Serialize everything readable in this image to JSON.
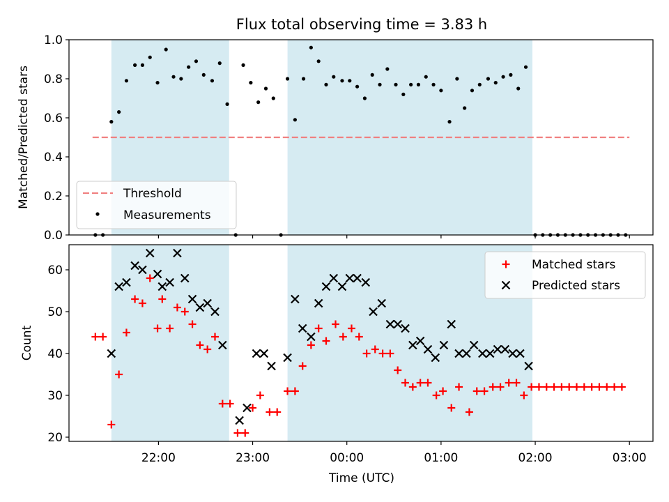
{
  "chart_data": [
    {
      "type": "scatter",
      "title": "Flux total observing time = 3.83 h",
      "ylabel": "Matched/Predicted stars",
      "xlabel": "",
      "xlim_hours": [
        21.05,
        27.25
      ],
      "ylim": [
        0.0,
        1.0
      ],
      "yticks": [
        0.0,
        0.2,
        0.4,
        0.6,
        0.8,
        1.0
      ],
      "ytick_labels": [
        "0.0",
        "0.2",
        "0.4",
        "0.6",
        "0.8",
        "1.0"
      ],
      "shaded_spans_hours": [
        [
          21.5,
          22.75
        ],
        [
          23.37,
          25.97
        ]
      ],
      "threshold": {
        "name": "Threshold",
        "value": 0.5,
        "x_range_hours": [
          21.3,
          27.0
        ],
        "color": "#f08080"
      },
      "legend": {
        "location": "lower-left",
        "entries": [
          "Threshold",
          "Measurements"
        ]
      },
      "series": [
        {
          "name": "Measurements",
          "color": "#000000",
          "points": [
            [
              21.33,
              0.0
            ],
            [
              21.41,
              0.0
            ],
            [
              21.5,
              0.58
            ],
            [
              21.58,
              0.63
            ],
            [
              21.66,
              0.79
            ],
            [
              21.75,
              0.87
            ],
            [
              21.83,
              0.87
            ],
            [
              21.91,
              0.91
            ],
            [
              21.99,
              0.78
            ],
            [
              22.08,
              0.95
            ],
            [
              22.16,
              0.81
            ],
            [
              22.24,
              0.8
            ],
            [
              22.32,
              0.86
            ],
            [
              22.4,
              0.89
            ],
            [
              22.48,
              0.82
            ],
            [
              22.57,
              0.79
            ],
            [
              22.65,
              0.88
            ],
            [
              22.73,
              0.67
            ],
            [
              22.82,
              0.0
            ],
            [
              22.9,
              0.87
            ],
            [
              22.98,
              0.78
            ],
            [
              23.06,
              0.68
            ],
            [
              23.14,
              0.75
            ],
            [
              23.22,
              0.7
            ],
            [
              23.3,
              0.0
            ],
            [
              23.37,
              0.8
            ],
            [
              23.45,
              0.59
            ],
            [
              23.54,
              0.8
            ],
            [
              23.62,
              0.96
            ],
            [
              23.7,
              0.89
            ],
            [
              23.78,
              0.77
            ],
            [
              23.86,
              0.81
            ],
            [
              23.95,
              0.79
            ],
            [
              24.03,
              0.79
            ],
            [
              24.11,
              0.76
            ],
            [
              24.19,
              0.7
            ],
            [
              24.27,
              0.82
            ],
            [
              24.35,
              0.77
            ],
            [
              24.43,
              0.85
            ],
            [
              24.52,
              0.77
            ],
            [
              24.6,
              0.72
            ],
            [
              24.68,
              0.77
            ],
            [
              24.76,
              0.77
            ],
            [
              24.84,
              0.81
            ],
            [
              24.92,
              0.77
            ],
            [
              25.0,
              0.74
            ],
            [
              25.09,
              0.58
            ],
            [
              25.17,
              0.8
            ],
            [
              25.25,
              0.65
            ],
            [
              25.33,
              0.74
            ],
            [
              25.41,
              0.77
            ],
            [
              25.5,
              0.8
            ],
            [
              25.58,
              0.78
            ],
            [
              25.66,
              0.81
            ],
            [
              25.74,
              0.82
            ],
            [
              25.82,
              0.75
            ],
            [
              25.9,
              0.86
            ],
            [
              26.0,
              0.0
            ],
            [
              26.08,
              0.0
            ],
            [
              26.16,
              0.0
            ],
            [
              26.24,
              0.0
            ],
            [
              26.32,
              0.0
            ],
            [
              26.4,
              0.0
            ],
            [
              26.48,
              0.0
            ],
            [
              26.56,
              0.0
            ],
            [
              26.64,
              0.0
            ],
            [
              26.72,
              0.0
            ],
            [
              26.8,
              0.0
            ],
            [
              26.88,
              0.0
            ],
            [
              26.96,
              0.0
            ]
          ]
        }
      ]
    },
    {
      "type": "scatter",
      "title": "",
      "ylabel": "Count",
      "xlabel": "Time (UTC)",
      "xlim_hours": [
        21.05,
        27.25
      ],
      "xticks_hours": [
        22,
        23,
        24,
        25,
        26,
        27
      ],
      "xtick_labels": [
        "22:00",
        "23:00",
        "00:00",
        "01:00",
        "02:00",
        "03:00"
      ],
      "ylim": [
        19,
        66
      ],
      "yticks": [
        20,
        30,
        40,
        50,
        60
      ],
      "ytick_labels": [
        "20",
        "30",
        "40",
        "50",
        "60"
      ],
      "shaded_spans_hours": [
        [
          21.5,
          22.75
        ],
        [
          23.37,
          25.97
        ]
      ],
      "legend": {
        "location": "upper-right",
        "entries": [
          "Matched stars",
          "Predicted stars"
        ]
      },
      "series": [
        {
          "name": "Matched stars",
          "marker": "plus",
          "color": "#ff0000",
          "points": [
            [
              21.33,
              44
            ],
            [
              21.41,
              44
            ],
            [
              21.5,
              23
            ],
            [
              21.58,
              35
            ],
            [
              21.66,
              45
            ],
            [
              21.75,
              53
            ],
            [
              21.83,
              52
            ],
            [
              21.91,
              58
            ],
            [
              21.99,
              46
            ],
            [
              22.04,
              53
            ],
            [
              22.12,
              46
            ],
            [
              22.2,
              51
            ],
            [
              22.28,
              50
            ],
            [
              22.36,
              47
            ],
            [
              22.44,
              42
            ],
            [
              22.52,
              41
            ],
            [
              22.6,
              44
            ],
            [
              22.68,
              28
            ],
            [
              22.76,
              28
            ],
            [
              22.84,
              21
            ],
            [
              22.92,
              21
            ],
            [
              23.0,
              27
            ],
            [
              23.08,
              30
            ],
            [
              23.18,
              26
            ],
            [
              23.26,
              26
            ],
            [
              23.37,
              31
            ],
            [
              23.45,
              31
            ],
            [
              23.53,
              37
            ],
            [
              23.62,
              42
            ],
            [
              23.7,
              46
            ],
            [
              23.78,
              43
            ],
            [
              23.88,
              47
            ],
            [
              23.96,
              44
            ],
            [
              24.05,
              46
            ],
            [
              24.13,
              44
            ],
            [
              24.21,
              40
            ],
            [
              24.3,
              41
            ],
            [
              24.38,
              40
            ],
            [
              24.46,
              40
            ],
            [
              24.54,
              36
            ],
            [
              24.62,
              33
            ],
            [
              24.7,
              32
            ],
            [
              24.78,
              33
            ],
            [
              24.86,
              33
            ],
            [
              24.95,
              30
            ],
            [
              25.02,
              31
            ],
            [
              25.11,
              27
            ],
            [
              25.19,
              32
            ],
            [
              25.3,
              26
            ],
            [
              25.38,
              31
            ],
            [
              25.46,
              31
            ],
            [
              25.55,
              32
            ],
            [
              25.63,
              32
            ],
            [
              25.72,
              33
            ],
            [
              25.8,
              33
            ],
            [
              25.88,
              30
            ],
            [
              25.96,
              32
            ],
            [
              26.04,
              32
            ],
            [
              26.12,
              32
            ],
            [
              26.2,
              32
            ],
            [
              26.28,
              32
            ],
            [
              26.36,
              32
            ],
            [
              26.44,
              32
            ],
            [
              26.52,
              32
            ],
            [
              26.6,
              32
            ],
            [
              26.68,
              32
            ],
            [
              26.76,
              32
            ],
            [
              26.84,
              32
            ],
            [
              26.92,
              32
            ]
          ]
        },
        {
          "name": "Predicted stars",
          "marker": "x",
          "color": "#000000",
          "points": [
            [
              21.5,
              40
            ],
            [
              21.58,
              56
            ],
            [
              21.66,
              57
            ],
            [
              21.75,
              61
            ],
            [
              21.83,
              60
            ],
            [
              21.91,
              64
            ],
            [
              21.99,
              59
            ],
            [
              22.04,
              56
            ],
            [
              22.12,
              57
            ],
            [
              22.2,
              64
            ],
            [
              22.28,
              58
            ],
            [
              22.36,
              53
            ],
            [
              22.44,
              51
            ],
            [
              22.52,
              52
            ],
            [
              22.6,
              50
            ],
            [
              22.68,
              42
            ],
            [
              22.86,
              24
            ],
            [
              22.94,
              27
            ],
            [
              23.04,
              40
            ],
            [
              23.12,
              40
            ],
            [
              23.2,
              37
            ],
            [
              23.37,
              39
            ],
            [
              23.45,
              53
            ],
            [
              23.53,
              46
            ],
            [
              23.62,
              44
            ],
            [
              23.7,
              52
            ],
            [
              23.78,
              56
            ],
            [
              23.86,
              58
            ],
            [
              23.95,
              56
            ],
            [
              24.03,
              58
            ],
            [
              24.11,
              58
            ],
            [
              24.2,
              57
            ],
            [
              24.28,
              50
            ],
            [
              24.37,
              52
            ],
            [
              24.46,
              47
            ],
            [
              24.54,
              47
            ],
            [
              24.62,
              46
            ],
            [
              24.7,
              42
            ],
            [
              24.78,
              43
            ],
            [
              24.86,
              41
            ],
            [
              24.94,
              39
            ],
            [
              25.03,
              42
            ],
            [
              25.11,
              47
            ],
            [
              25.19,
              40
            ],
            [
              25.27,
              40
            ],
            [
              25.35,
              42
            ],
            [
              25.44,
              40
            ],
            [
              25.52,
              40
            ],
            [
              25.6,
              41
            ],
            [
              25.68,
              41
            ],
            [
              25.76,
              40
            ],
            [
              25.84,
              40
            ],
            [
              25.93,
              37
            ]
          ]
        }
      ]
    }
  ]
}
